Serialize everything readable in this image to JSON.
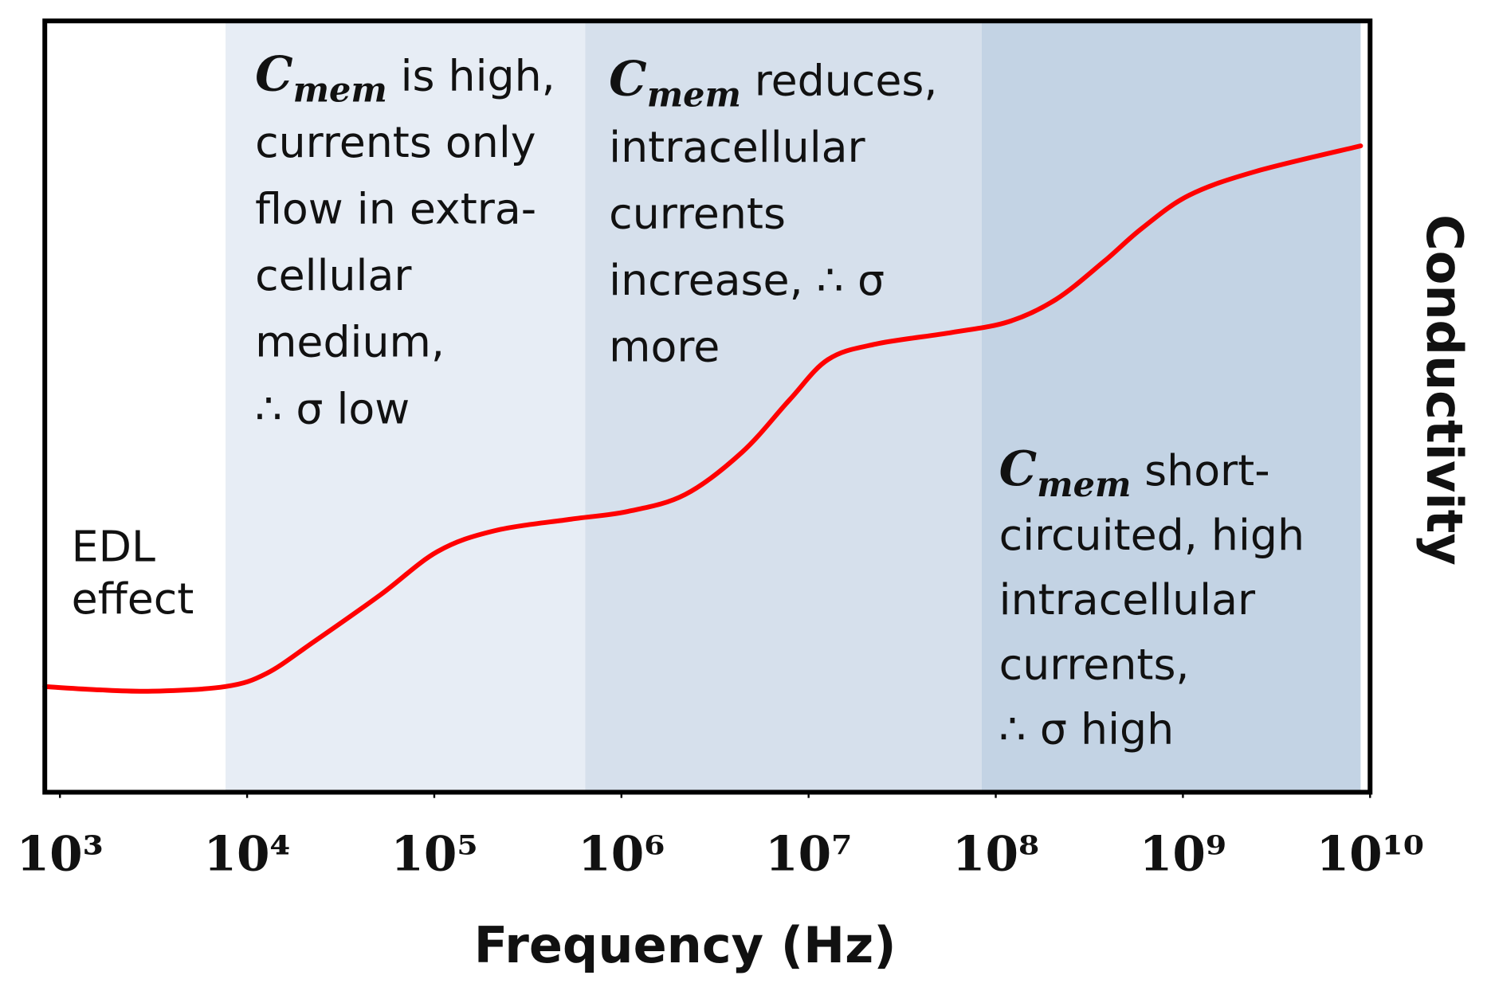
{
  "chart_data": {
    "type": "line",
    "x_label": "Frequency (Hz)",
    "y_label": "Conductivity",
    "xscale": "log",
    "xlim": [
      830,
      10000000000
    ],
    "ylim": [
      0,
      100
    ],
    "xticks": [
      {
        "value": 1000,
        "label": "10³"
      },
      {
        "value": 10000,
        "label": "10⁴"
      },
      {
        "value": 100000,
        "label": "10⁵"
      },
      {
        "value": 1000000,
        "label": "10⁶"
      },
      {
        "value": 10000000,
        "label": "10⁷"
      },
      {
        "value": 100000000,
        "label": "10⁸"
      },
      {
        "value": 1000000000,
        "label": "10⁹"
      },
      {
        "value": 10000000000,
        "label": "10¹⁰"
      }
    ],
    "regions": [
      {
        "x0": 7670,
        "x1": 640000,
        "color": "#e7edf5"
      },
      {
        "x0": 640000,
        "x1": 84000000,
        "color": "#d6e0ec"
      },
      {
        "x0": 84000000,
        "x1": 8900000000,
        "color": "#c3d3e4"
      }
    ],
    "series": [
      {
        "name": "Conductivity",
        "color": "#ff0000",
        "x": [
          830,
          1540,
          3110,
          7670,
          12700,
          22700,
          51600,
          104000,
          210000,
          537000,
          1080000,
          2190000,
          4420000,
          7930000,
          12700000,
          22800000,
          58000000,
          117000000,
          210000000,
          378000000,
          603000000,
          1080000000,
          2460000000,
          8900000000
        ],
        "values": [
          13.7,
          13.3,
          13.1,
          13.7,
          15.4,
          19.5,
          25.6,
          31.2,
          33.9,
          35.4,
          36.4,
          38.6,
          44.1,
          50.9,
          56.1,
          58.1,
          59.6,
          61.0,
          63.9,
          68.8,
          73.1,
          77.4,
          80.5,
          83.8
        ]
      }
    ],
    "annotations": [
      {
        "lines": [
          "EDL",
          "effect"
        ]
      },
      {
        "symbol": "C",
        "sub": "mem",
        "lines": [
          "is high,",
          "currents only",
          "flow in extra-",
          "cellular",
          "medium,",
          "∴ σ low"
        ]
      },
      {
        "symbol": "C",
        "sub": "mem",
        "lines": [
          "reduces,",
          "intracellular",
          "currents",
          "increase, ∴ σ",
          "more"
        ]
      },
      {
        "symbol": "C",
        "sub": "mem",
        "lines": [
          "short-",
          "circuited, high",
          "intracellular",
          "currents,",
          "∴ σ high"
        ]
      }
    ]
  }
}
